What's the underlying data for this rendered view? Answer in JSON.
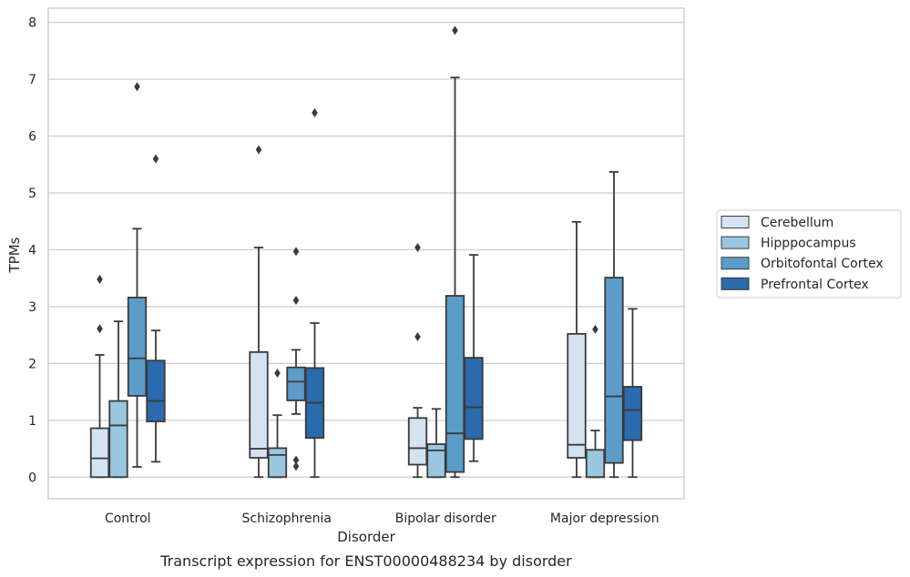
{
  "chart_data": {
    "type": "box",
    "title": "",
    "caption": "Transcript expression for ENST00000488234 by disorder",
    "xlabel": "Disorder",
    "ylabel": "TPMs",
    "ylim": [
      -0.38,
      8.25
    ],
    "yticks": [
      0,
      1,
      2,
      3,
      4,
      5,
      6,
      7,
      8
    ],
    "grid": "horizontal",
    "legend_position": "right",
    "categories": [
      "Control",
      "Schizophrenia",
      "Bipolar disorder",
      "Major depression"
    ],
    "series": [
      {
        "name": "Cerebellum",
        "color": "#d3e3f2",
        "boxes": [
          {
            "whislo": 0.0,
            "q1": 0.0,
            "med": 0.33,
            "q3": 0.86,
            "whishi": 2.15,
            "fliers": [
              2.61,
              3.48
            ]
          },
          {
            "whislo": 0.0,
            "q1": 0.34,
            "med": 0.5,
            "q3": 2.2,
            "whishi": 4.04,
            "fliers": [
              5.76
            ]
          },
          {
            "whislo": 0.0,
            "q1": 0.22,
            "med": 0.51,
            "q3": 1.04,
            "whishi": 1.22,
            "fliers": [
              2.47,
              4.04
            ]
          },
          {
            "whislo": 0.0,
            "q1": 0.34,
            "med": 0.57,
            "q3": 2.52,
            "whishi": 4.49,
            "fliers": []
          }
        ]
      },
      {
        "name": "Hipppocampus",
        "color": "#9ac7e0",
        "boxes": [
          {
            "whislo": 0.0,
            "q1": 0.0,
            "med": 0.91,
            "q3": 1.34,
            "whishi": 2.74,
            "fliers": []
          },
          {
            "whislo": 0.0,
            "q1": 0.0,
            "med": 0.39,
            "q3": 0.51,
            "whishi": 1.09,
            "fliers": [
              1.83
            ]
          },
          {
            "whislo": 0.0,
            "q1": 0.0,
            "med": 0.47,
            "q3": 0.58,
            "whishi": 1.2,
            "fliers": []
          },
          {
            "whislo": 0.0,
            "q1": 0.0,
            "med": 0.0,
            "q3": 0.48,
            "whishi": 0.82,
            "fliers": [
              2.6
            ]
          }
        ]
      },
      {
        "name": "Orbitofontal Cortex",
        "color": "#5b9cca",
        "boxes": [
          {
            "whislo": 0.18,
            "q1": 1.43,
            "med": 2.09,
            "q3": 3.16,
            "whishi": 4.37,
            "fliers": [
              6.87
            ]
          },
          {
            "whislo": 1.11,
            "q1": 1.35,
            "med": 1.68,
            "q3": 1.93,
            "whishi": 2.24,
            "fliers": [
              0.19,
              0.3,
              3.11,
              3.97
            ]
          },
          {
            "whislo": 0.0,
            "q1": 0.09,
            "med": 0.77,
            "q3": 3.19,
            "whishi": 7.03,
            "fliers": [
              7.86
            ]
          },
          {
            "whislo": 0.0,
            "q1": 0.25,
            "med": 1.42,
            "q3": 3.51,
            "whishi": 5.37,
            "fliers": []
          }
        ]
      },
      {
        "name": "Prefrontal Cortex",
        "color": "#2b6aac",
        "boxes": [
          {
            "whislo": 0.27,
            "q1": 0.98,
            "med": 1.34,
            "q3": 2.05,
            "whishi": 2.58,
            "fliers": [
              5.6
            ]
          },
          {
            "whislo": 0.0,
            "q1": 0.69,
            "med": 1.31,
            "q3": 1.92,
            "whishi": 2.71,
            "fliers": [
              6.41
            ]
          },
          {
            "whislo": 0.28,
            "q1": 0.67,
            "med": 1.23,
            "q3": 2.1,
            "whishi": 3.91,
            "fliers": []
          },
          {
            "whislo": 0.0,
            "q1": 0.65,
            "med": 1.18,
            "q3": 1.59,
            "whishi": 2.96,
            "fliers": []
          }
        ]
      }
    ]
  }
}
